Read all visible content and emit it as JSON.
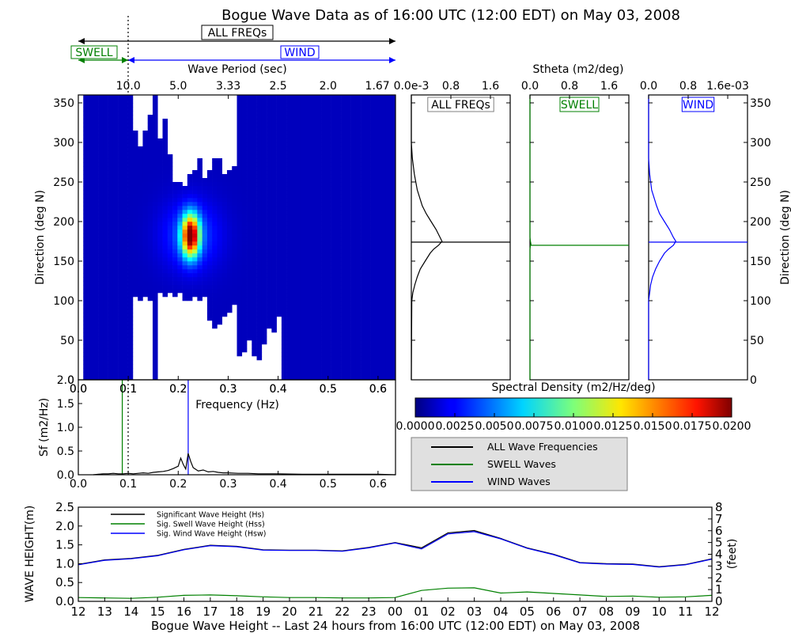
{
  "figure": {
    "title": "Bogue Wave Data as of 16:00 UTC (12:00 EDT) on May 03, 2008",
    "bottom_title": "Bogue Wave Height -- Last 24 hours from 16:00 UTC (12:00 EDT) on May 03, 2008"
  },
  "band_labels": {
    "all": "ALL FREQs",
    "swell": "SWELL",
    "wind": "WIND"
  },
  "colors": {
    "all": "#000000",
    "swell": "#008000",
    "wind": "#0000ff",
    "background": "#ffffff",
    "legend_bg": "#e0e0e0"
  },
  "chart_data": [
    {
      "id": "spectrum_heatmap",
      "type": "heatmap",
      "xlabel": "Frequency (Hz)",
      "ylabel": "Direction (deg N)",
      "xlim": [
        0.0,
        0.635
      ],
      "ylim": [
        0,
        360
      ],
      "x_ticks": [
        "0.0",
        "0.1",
        "0.2",
        "0.3",
        "0.4",
        "0.5",
        "0.6"
      ],
      "y_ticks": [
        "0",
        "50",
        "100",
        "150",
        "200",
        "250",
        "300",
        "350"
      ],
      "top_axis_label": "Wave Period (sec)",
      "top_axis_ticks": [
        "10.0",
        "5.0",
        "3.33",
        "2.5",
        "2.0",
        "1.67"
      ],
      "swell_wind_separation_hz": 0.1,
      "peak": {
        "frequency_hz": 0.22,
        "direction_deg": 180,
        "value": 0.02
      }
    },
    {
      "id": "sf_line",
      "type": "line",
      "xlabel": "",
      "ylabel": "Sf (m2/Hz)",
      "xlim": [
        0.0,
        0.635
      ],
      "ylim": [
        0.0,
        2.0
      ],
      "x_ticks": [
        "0.0",
        "0.1",
        "0.2",
        "0.3",
        "0.4",
        "0.5",
        "0.6"
      ],
      "y_ticks": [
        "0.0",
        "0.5",
        "1.0",
        "1.5",
        "2.0"
      ],
      "swell_peak_hz": 0.088,
      "wind_peak_hz": 0.22,
      "x": [
        0.03,
        0.04,
        0.05,
        0.06,
        0.07,
        0.08,
        0.09,
        0.1,
        0.11,
        0.12,
        0.13,
        0.14,
        0.15,
        0.16,
        0.17,
        0.18,
        0.19,
        0.2,
        0.205,
        0.21,
        0.215,
        0.22,
        0.225,
        0.23,
        0.24,
        0.25,
        0.26,
        0.27,
        0.28,
        0.29,
        0.3,
        0.32,
        0.34,
        0.36,
        0.38,
        0.4,
        0.45,
        0.5,
        0.55,
        0.6,
        0.635
      ],
      "series": [
        {
          "color": "#000000",
          "values": [
            0.0,
            0.01,
            0.02,
            0.02,
            0.03,
            0.02,
            0.02,
            0.03,
            0.02,
            0.03,
            0.04,
            0.03,
            0.05,
            0.06,
            0.07,
            0.09,
            0.13,
            0.18,
            0.35,
            0.22,
            0.12,
            0.45,
            0.28,
            0.15,
            0.08,
            0.1,
            0.06,
            0.07,
            0.05,
            0.04,
            0.04,
            0.03,
            0.03,
            0.02,
            0.02,
            0.02,
            0.01,
            0.01,
            0.01,
            0.01,
            0.0
          ]
        }
      ]
    },
    {
      "id": "stheta_all",
      "type": "line",
      "label": "ALL FREQs",
      "top_axis_label": "Stheta (m2/deg)",
      "x_ticks": [
        "0.0e-3",
        "0.8",
        "1.6"
      ],
      "xlim": [
        0.0,
        2.0
      ],
      "ylim": [
        0,
        360
      ],
      "y": [
        360,
        300,
        280,
        260,
        240,
        220,
        210,
        200,
        190,
        180,
        175,
        170,
        165,
        160,
        150,
        140,
        130,
        120,
        110,
        100,
        0
      ],
      "values": [
        0.0,
        0.0,
        0.02,
        0.06,
        0.12,
        0.22,
        0.3,
        0.4,
        0.5,
        0.58,
        0.62,
        0.55,
        0.45,
        0.38,
        0.28,
        0.18,
        0.12,
        0.07,
        0.03,
        0.01,
        0.0
      ],
      "peak_direction_deg": 174
    },
    {
      "id": "stheta_swell",
      "type": "line",
      "label": "SWELL",
      "x_ticks": [
        "0.0",
        "0.8",
        "1.6"
      ],
      "xlim": [
        0.0,
        2.0
      ],
      "ylim": [
        0,
        360
      ],
      "y": [
        360,
        180,
        175,
        171,
        170,
        165,
        0
      ],
      "values": [
        0.0,
        0.0,
        0.01,
        0.02,
        0.01,
        0.0,
        0.0
      ],
      "peak_direction_deg": 170
    },
    {
      "id": "stheta_wind",
      "type": "line",
      "label": "WIND",
      "x_ticks": [
        "0.0",
        "0.8",
        "1.6e-03"
      ],
      "xlim": [
        0.0,
        2.0
      ],
      "ylim": [
        0,
        360
      ],
      "right_axis_label": "Direction (deg N)",
      "y_ticks": [
        "0",
        "50",
        "100",
        "150",
        "200",
        "250",
        "300",
        "350"
      ],
      "y": [
        360,
        280,
        260,
        240,
        220,
        210,
        200,
        190,
        180,
        175,
        170,
        165,
        160,
        150,
        140,
        130,
        120,
        110,
        100,
        0
      ],
      "values": [
        0.0,
        0.0,
        0.02,
        0.06,
        0.16,
        0.22,
        0.32,
        0.42,
        0.5,
        0.55,
        0.5,
        0.4,
        0.32,
        0.22,
        0.14,
        0.08,
        0.04,
        0.02,
        0.0,
        0.0
      ],
      "peak_direction_deg": 174
    },
    {
      "id": "colorbar",
      "type": "heatmap",
      "title": "Spectral Density (m2/Hz/deg)",
      "range": [
        0.0,
        0.02
      ],
      "ticks": [
        "0.0000",
        "0.0025",
        "0.0050",
        "0.0075",
        "0.0100",
        "0.0125",
        "0.0150",
        "0.0175",
        "0.0200"
      ]
    },
    {
      "id": "wave_height",
      "type": "line",
      "ylabel_left": "WAVE HEIGHT(m)",
      "ylabel_right": "(feet)",
      "ylim": [
        0.0,
        2.5
      ],
      "y_ticks": [
        "0.0",
        "0.5",
        "1.0",
        "1.5",
        "2.0",
        "2.5"
      ],
      "right_ticks": [
        "0",
        "1",
        "2",
        "3",
        "4",
        "5",
        "6",
        "7",
        "8"
      ],
      "categories": [
        "12",
        "13",
        "14",
        "15",
        "16",
        "17",
        "18",
        "19",
        "20",
        "21",
        "22",
        "23",
        "00",
        "01",
        "02",
        "03",
        "04",
        "05",
        "06",
        "07",
        "08",
        "09",
        "10",
        "11",
        "12"
      ],
      "series": [
        {
          "name": "Significant Wave Height (Hs)",
          "color": "#000000",
          "values": [
            0.98,
            1.1,
            1.14,
            1.22,
            1.38,
            1.49,
            1.46,
            1.37,
            1.36,
            1.36,
            1.34,
            1.43,
            1.56,
            1.42,
            1.82,
            1.88,
            1.67,
            1.42,
            1.25,
            1.03,
            1.0,
            0.99,
            0.92,
            0.98,
            1.13
          ]
        },
        {
          "name": "Sig. Swell Wave Height (Hss)",
          "color": "#008000",
          "values": [
            0.1,
            0.09,
            0.08,
            0.11,
            0.16,
            0.17,
            0.15,
            0.12,
            0.1,
            0.1,
            0.09,
            0.09,
            0.1,
            0.29,
            0.35,
            0.36,
            0.22,
            0.25,
            0.21,
            0.17,
            0.13,
            0.14,
            0.11,
            0.12,
            0.16
          ]
        },
        {
          "name": "Sig. Wind Wave Height (Hsw)",
          "color": "#0000ff",
          "values": [
            0.97,
            1.09,
            1.13,
            1.21,
            1.37,
            1.48,
            1.45,
            1.36,
            1.35,
            1.35,
            1.33,
            1.42,
            1.55,
            1.39,
            1.79,
            1.85,
            1.66,
            1.41,
            1.24,
            1.02,
            0.99,
            0.98,
            0.91,
            0.97,
            1.12
          ]
        }
      ]
    }
  ],
  "legend": [
    {
      "label": "ALL Wave Frequencies",
      "color": "#000000"
    },
    {
      "label": "SWELL Waves",
      "color": "#008000"
    },
    {
      "label": "WIND Waves",
      "color": "#0000ff"
    }
  ]
}
